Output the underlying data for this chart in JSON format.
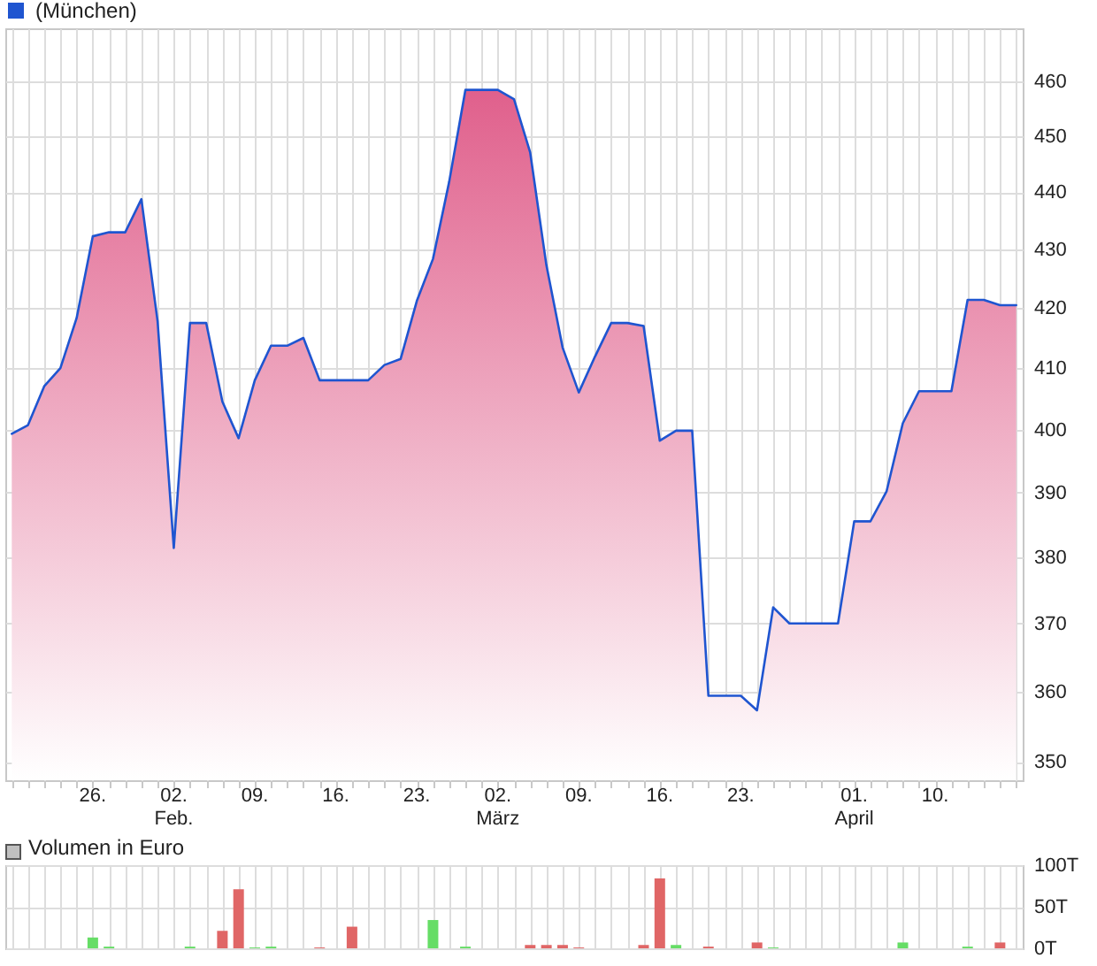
{
  "chart_data": [
    {
      "type": "area",
      "legend": "top left",
      "log": true,
      "grid": true,
      "categories": [
        null,
        null,
        null,
        null,
        null,
        "26.",
        null,
        null,
        null,
        null,
        "02. Feb.",
        null,
        null,
        null,
        null,
        "09.",
        null,
        null,
        null,
        null,
        "16.",
        null,
        null,
        null,
        null,
        "23.",
        null,
        null,
        null,
        null,
        "02. März",
        null,
        null,
        null,
        null,
        "09.",
        null,
        null,
        null,
        null,
        "16.",
        null,
        null,
        null,
        null,
        "23.",
        null,
        null,
        null,
        null,
        null,
        null,
        "01. April",
        null,
        null,
        null,
        null,
        "10.",
        null,
        null,
        null,
        null,
        null
      ],
      "series": [
        {
          "name": "(München)",
          "color": "#1f55d0",
          "values": [
            399.3,
            400.7,
            407,
            410,
            418.3,
            432.3,
            433,
            433,
            438.8,
            417.8,
            381.4,
            417.5,
            417.5,
            404.5,
            398.6,
            408,
            413.7,
            413.7,
            415,
            408,
            408,
            408,
            408,
            410.5,
            411.5,
            421.2,
            428.4,
            441.9,
            458.5,
            458.5,
            458.5,
            456.8,
            447.1,
            427.3,
            413.4,
            406,
            411.9,
            417.5,
            417.5,
            417,
            398.2,
            399.8,
            399.8,
            359.4,
            359.4,
            359.4,
            357.3,
            372.4,
            370,
            370,
            370,
            370,
            385.5,
            385.5,
            390.2,
            401,
            406.2,
            406.2,
            406.2,
            421.4,
            421.4,
            420.5,
            420.5
          ]
        }
      ],
      "ylim": [
        347.4,
        470
      ],
      "yticks": [
        350,
        360,
        370,
        380,
        390,
        400,
        410,
        420,
        430,
        440,
        450,
        460
      ]
    },
    {
      "type": "bar",
      "title": "Volumen in Euro",
      "grid": true,
      "tick_labels": "y",
      "categories": [
        null,
        null,
        null,
        null,
        null,
        null,
        null,
        null,
        null,
        null,
        null,
        null,
        null,
        null,
        null,
        null,
        null,
        null,
        null,
        null,
        null,
        null,
        null,
        null,
        null,
        null,
        null,
        null,
        null,
        null,
        null,
        null,
        null,
        null,
        null,
        null,
        null,
        null,
        null,
        null,
        null,
        null,
        null,
        null,
        null,
        null,
        null,
        null,
        null,
        null,
        null,
        null,
        null,
        null,
        null,
        null,
        null,
        null,
        null,
        null,
        null,
        null,
        null
      ],
      "values": [
        null,
        null,
        null,
        null,
        null,
        13,
        2,
        null,
        null,
        null,
        null,
        2,
        null,
        21,
        71,
        1,
        2,
        null,
        null,
        1,
        null,
        26,
        null,
        null,
        null,
        null,
        34,
        null,
        2,
        null,
        null,
        null,
        4,
        4,
        4,
        1,
        null,
        null,
        null,
        4,
        84,
        4,
        null,
        2,
        null,
        null,
        7,
        1,
        null,
        null,
        null,
        null,
        null,
        null,
        null,
        7,
        null,
        null,
        null,
        2,
        null,
        7,
        null
      ],
      "colors": [
        null,
        null,
        null,
        null,
        null,
        "#66dd66",
        "#66dd66",
        null,
        null,
        null,
        null,
        "#66dd66",
        null,
        "#e06666",
        "#e06666",
        "#66dd66",
        "#66dd66",
        null,
        null,
        "#e06666",
        null,
        "#e06666",
        null,
        null,
        null,
        null,
        "#66dd66",
        null,
        "#66dd66",
        null,
        null,
        null,
        "#e06666",
        "#e06666",
        "#e06666",
        "#e06666",
        null,
        null,
        null,
        "#e06666",
        "#e06666",
        "#66dd66",
        null,
        "#e06666",
        null,
        null,
        "#e06666",
        "#66dd66",
        null,
        null,
        null,
        null,
        null,
        null,
        null,
        "#66dd66",
        null,
        null,
        null,
        "#66dd66",
        null,
        "#e06666",
        null
      ],
      "ylim": [
        0,
        100
      ],
      "yticks": [
        {
          "value": 0,
          "label": "0T"
        },
        {
          "value": 50,
          "label": "50T"
        },
        {
          "value": 100,
          "label": "100T"
        }
      ]
    }
  ]
}
